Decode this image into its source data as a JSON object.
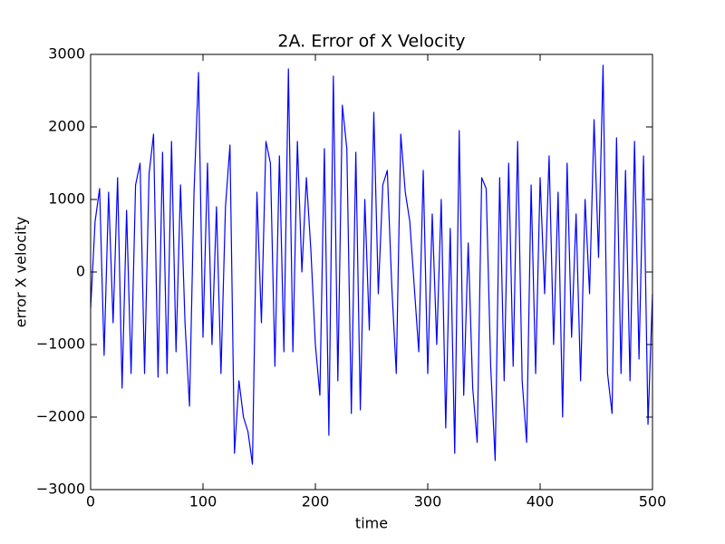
{
  "chart_data": {
    "type": "line",
    "title": "2A. Error of X Velocity",
    "x_label": "time",
    "y_label": "error X velocity",
    "x": [
      0,
      4,
      8,
      12,
      16,
      20,
      24,
      28,
      32,
      36,
      40,
      44,
      48,
      52,
      56,
      60,
      64,
      68,
      72,
      76,
      80,
      84,
      88,
      92,
      96,
      100,
      104,
      108,
      112,
      116,
      120,
      124,
      128,
      132,
      136,
      140,
      144,
      148,
      152,
      156,
      160,
      164,
      168,
      172,
      176,
      180,
      184,
      188,
      192,
      196,
      200,
      204,
      208,
      212,
      216,
      220,
      224,
      228,
      232,
      236,
      240,
      244,
      248,
      252,
      256,
      260,
      264,
      268,
      272,
      276,
      280,
      284,
      288,
      292,
      296,
      300,
      304,
      308,
      312,
      316,
      320,
      324,
      328,
      332,
      336,
      340,
      344,
      348,
      352,
      356,
      360,
      364,
      368,
      372,
      376,
      380,
      384,
      388,
      392,
      396,
      400,
      404,
      408,
      412,
      416,
      420,
      424,
      428,
      432,
      436,
      440,
      444,
      448,
      452,
      456,
      460,
      464,
      468,
      472,
      476,
      480,
      484,
      488,
      492,
      496,
      500
    ],
    "series": [
      {
        "name": "error",
        "color": "#0000ff",
        "values": [
          -500,
          700,
          1150,
          -1150,
          1100,
          -700,
          1300,
          -1600,
          850,
          -1400,
          1200,
          1500,
          -1400,
          1350,
          1900,
          -1450,
          1650,
          -1400,
          1800,
          -1100,
          1200,
          -700,
          -1850,
          1100,
          2750,
          -900,
          1500,
          -1000,
          900,
          -1400,
          900,
          1750,
          -2500,
          -1500,
          -2000,
          -2200,
          -2650,
          1100,
          -700,
          1800,
          1500,
          -1300,
          1600,
          -1100,
          2800,
          -1100,
          1800,
          0,
          1300,
          300,
          -1000,
          -1700,
          1700,
          -2250,
          2700,
          -1500,
          2300,
          1700,
          -1950,
          1650,
          -1900,
          1000,
          -800,
          2200,
          -300,
          1200,
          1400,
          -200,
          -1400,
          1900,
          1100,
          700,
          -200,
          -1100,
          1400,
          -1400,
          800,
          -1000,
          1000,
          -2150,
          600,
          -2500,
          1950,
          -1700,
          400,
          -1600,
          -2350,
          1300,
          1150,
          -1300,
          -2600,
          1300,
          -1500,
          1500,
          -1300,
          1800,
          -1500,
          -2350,
          1200,
          -1400,
          1300,
          -300,
          1600,
          -1000,
          1100,
          -2000,
          1500,
          -900,
          800,
          -1500,
          1000,
          -300,
          2100,
          200,
          2850,
          -1400,
          -1950,
          1850,
          -1400,
          1400,
          -1500,
          1800,
          -1200,
          1600,
          -2100,
          -300
        ]
      }
    ],
    "xlim": [
      0,
      500
    ],
    "xticks": [
      0,
      100,
      200,
      300,
      400,
      500
    ],
    "ylim": [
      -3000,
      3000
    ],
    "yticks": [
      {
        "value": -3000,
        "label": "−3000"
      },
      {
        "value": -2000,
        "label": "−2000"
      },
      {
        "value": -1000,
        "label": "−1000"
      },
      0,
      1000,
      2000,
      3000
    ]
  }
}
